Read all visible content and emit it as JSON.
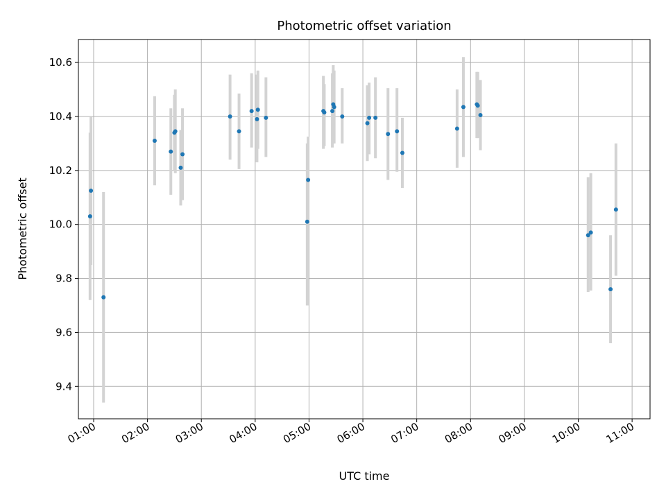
{
  "chart_data": {
    "type": "scatter",
    "title": "Photometric offset variation",
    "xlabel": "UTC time",
    "ylabel": "Photometric offset",
    "xlim": [
      "00:43",
      "11:20"
    ],
    "ylim": [
      9.28,
      10.685
    ],
    "x_ticks": [
      "01:00",
      "02:00",
      "03:00",
      "04:00",
      "05:00",
      "06:00",
      "07:00",
      "08:00",
      "09:00",
      "10:00",
      "11:00"
    ],
    "y_ticks": [
      "9.4",
      "9.6",
      "9.8",
      "10.0",
      "10.2",
      "10.4",
      "10.6"
    ],
    "grid": true,
    "series": [
      {
        "point_color": "#1f77b4",
        "errorbar_color": "#d3d3d3",
        "points": [
          {
            "x": "00:56",
            "y": 10.03,
            "ylow": 9.72,
            "yhigh": 10.34
          },
          {
            "x": "00:57",
            "y": 10.125,
            "ylow": 9.85,
            "yhigh": 10.4
          },
          {
            "x": "01:11",
            "y": 9.73,
            "ylow": 9.34,
            "yhigh": 10.12
          },
          {
            "x": "02:08",
            "y": 10.31,
            "ylow": 10.145,
            "yhigh": 10.475
          },
          {
            "x": "02:26",
            "y": 10.27,
            "ylow": 10.11,
            "yhigh": 10.43
          },
          {
            "x": "02:30",
            "y": 10.34,
            "ylow": 10.2,
            "yhigh": 10.48
          },
          {
            "x": "02:31",
            "y": 10.345,
            "ylow": 10.19,
            "yhigh": 10.5
          },
          {
            "x": "02:37",
            "y": 10.21,
            "ylow": 10.07,
            "yhigh": 10.35
          },
          {
            "x": "02:39",
            "y": 10.26,
            "ylow": 10.09,
            "yhigh": 10.43
          },
          {
            "x": "03:32",
            "y": 10.4,
            "ylow": 10.24,
            "yhigh": 10.555
          },
          {
            "x": "03:42",
            "y": 10.345,
            "ylow": 10.205,
            "yhigh": 10.485
          },
          {
            "x": "03:56",
            "y": 10.42,
            "ylow": 10.285,
            "yhigh": 10.56
          },
          {
            "x": "04:02",
            "y": 10.39,
            "ylow": 10.23,
            "yhigh": 10.555
          },
          {
            "x": "04:03",
            "y": 10.425,
            "ylow": 10.28,
            "yhigh": 10.57
          },
          {
            "x": "04:12",
            "y": 10.395,
            "ylow": 10.25,
            "yhigh": 10.545
          },
          {
            "x": "04:58",
            "y": 10.01,
            "ylow": 9.7,
            "yhigh": 10.3
          },
          {
            "x": "04:59",
            "y": 10.165,
            "ylow": 10.0,
            "yhigh": 10.325
          },
          {
            "x": "05:16",
            "y": 10.42,
            "ylow": 10.28,
            "yhigh": 10.55
          },
          {
            "x": "05:17",
            "y": 10.415,
            "ylow": 10.29,
            "yhigh": 10.52
          },
          {
            "x": "05:26",
            "y": 10.42,
            "ylow": 10.285,
            "yhigh": 10.56
          },
          {
            "x": "05:27",
            "y": 10.445,
            "ylow": 10.3,
            "yhigh": 10.59
          },
          {
            "x": "05:28",
            "y": 10.435,
            "ylow": 10.3,
            "yhigh": 10.57
          },
          {
            "x": "05:37",
            "y": 10.4,
            "ylow": 10.3,
            "yhigh": 10.505
          },
          {
            "x": "06:05",
            "y": 10.375,
            "ylow": 10.235,
            "yhigh": 10.515
          },
          {
            "x": "06:07",
            "y": 10.395,
            "ylow": 10.26,
            "yhigh": 10.525
          },
          {
            "x": "06:14",
            "y": 10.395,
            "ylow": 10.245,
            "yhigh": 10.545
          },
          {
            "x": "06:28",
            "y": 10.335,
            "ylow": 10.165,
            "yhigh": 10.505
          },
          {
            "x": "06:38",
            "y": 10.345,
            "ylow": 10.195,
            "yhigh": 10.505
          },
          {
            "x": "06:44",
            "y": 10.265,
            "ylow": 10.135,
            "yhigh": 10.395
          },
          {
            "x": "07:45",
            "y": 10.355,
            "ylow": 10.21,
            "yhigh": 10.5
          },
          {
            "x": "07:52",
            "y": 10.435,
            "ylow": 10.25,
            "yhigh": 10.62
          },
          {
            "x": "08:07",
            "y": 10.445,
            "ylow": 10.32,
            "yhigh": 10.565
          },
          {
            "x": "08:08",
            "y": 10.44,
            "ylow": 10.32,
            "yhigh": 10.565
          },
          {
            "x": "08:11",
            "y": 10.405,
            "ylow": 10.275,
            "yhigh": 10.535
          },
          {
            "x": "10:11",
            "y": 9.96,
            "ylow": 9.75,
            "yhigh": 10.175
          },
          {
            "x": "10:14",
            "y": 9.97,
            "ylow": 9.755,
            "yhigh": 10.19
          },
          {
            "x": "10:36",
            "y": 9.76,
            "ylow": 9.56,
            "yhigh": 9.96
          },
          {
            "x": "10:42",
            "y": 10.055,
            "ylow": 9.81,
            "yhigh": 10.3
          }
        ]
      }
    ]
  }
}
